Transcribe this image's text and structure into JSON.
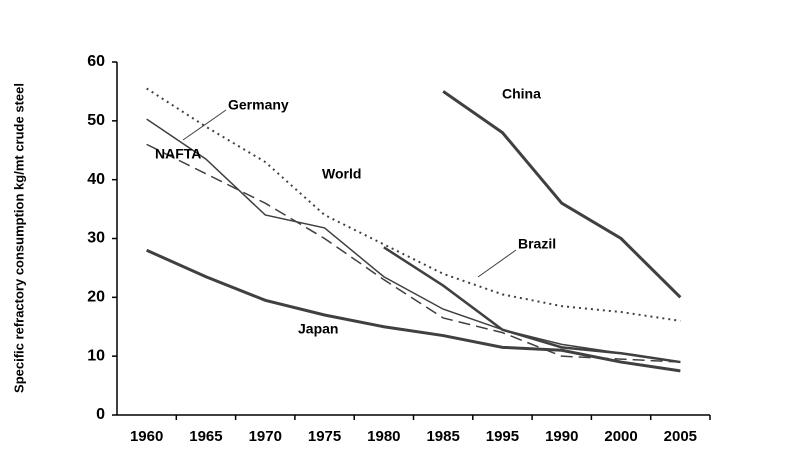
{
  "chart_data": {
    "type": "line",
    "y_label": "Specific refractory consumption kg/mt crude steel",
    "categories": [
      "1960",
      "1965",
      "1970",
      "1975",
      "1980",
      "1985",
      "1995",
      "1990",
      "2000",
      "2005"
    ],
    "ylim": [
      0,
      60
    ],
    "yticks": [
      0,
      10,
      20,
      30,
      40,
      50,
      60
    ],
    "series": [
      {
        "name": "World",
        "color": "#404040",
        "dash": "dotted",
        "width": 2,
        "values": [
          55.5,
          49,
          43,
          34,
          29,
          24,
          20.5,
          18.5,
          17.5,
          16
        ]
      },
      {
        "name": "Germany",
        "color": "#404040",
        "dash": "solid",
        "width": 1.5,
        "values": [
          50.3,
          43.5,
          34,
          31.8,
          23.5,
          18,
          14.5,
          12,
          10.5,
          9
        ]
      },
      {
        "name": "NAFTA",
        "color": "#404040",
        "dash": "dashed",
        "width": 1.5,
        "values": [
          46,
          41,
          36,
          30,
          23,
          16.5,
          14,
          10,
          9.5,
          9
        ]
      },
      {
        "name": "Japan",
        "color": "#404040",
        "dash": "solid",
        "width": 3,
        "values": [
          28,
          23.5,
          19.5,
          17,
          15,
          13.5,
          11.5,
          11,
          9,
          7.5
        ]
      },
      {
        "name": "China",
        "color": "#404040",
        "dash": "solid",
        "width": 3,
        "values": [
          null,
          null,
          null,
          null,
          null,
          55,
          48,
          36,
          30,
          20
        ]
      },
      {
        "name": "Brazil",
        "color": "#404040",
        "dash": "solid",
        "width": 2.5,
        "values": [
          null,
          null,
          null,
          null,
          28.5,
          22,
          14.5,
          11.5,
          10.5,
          9
        ]
      }
    ]
  }
}
